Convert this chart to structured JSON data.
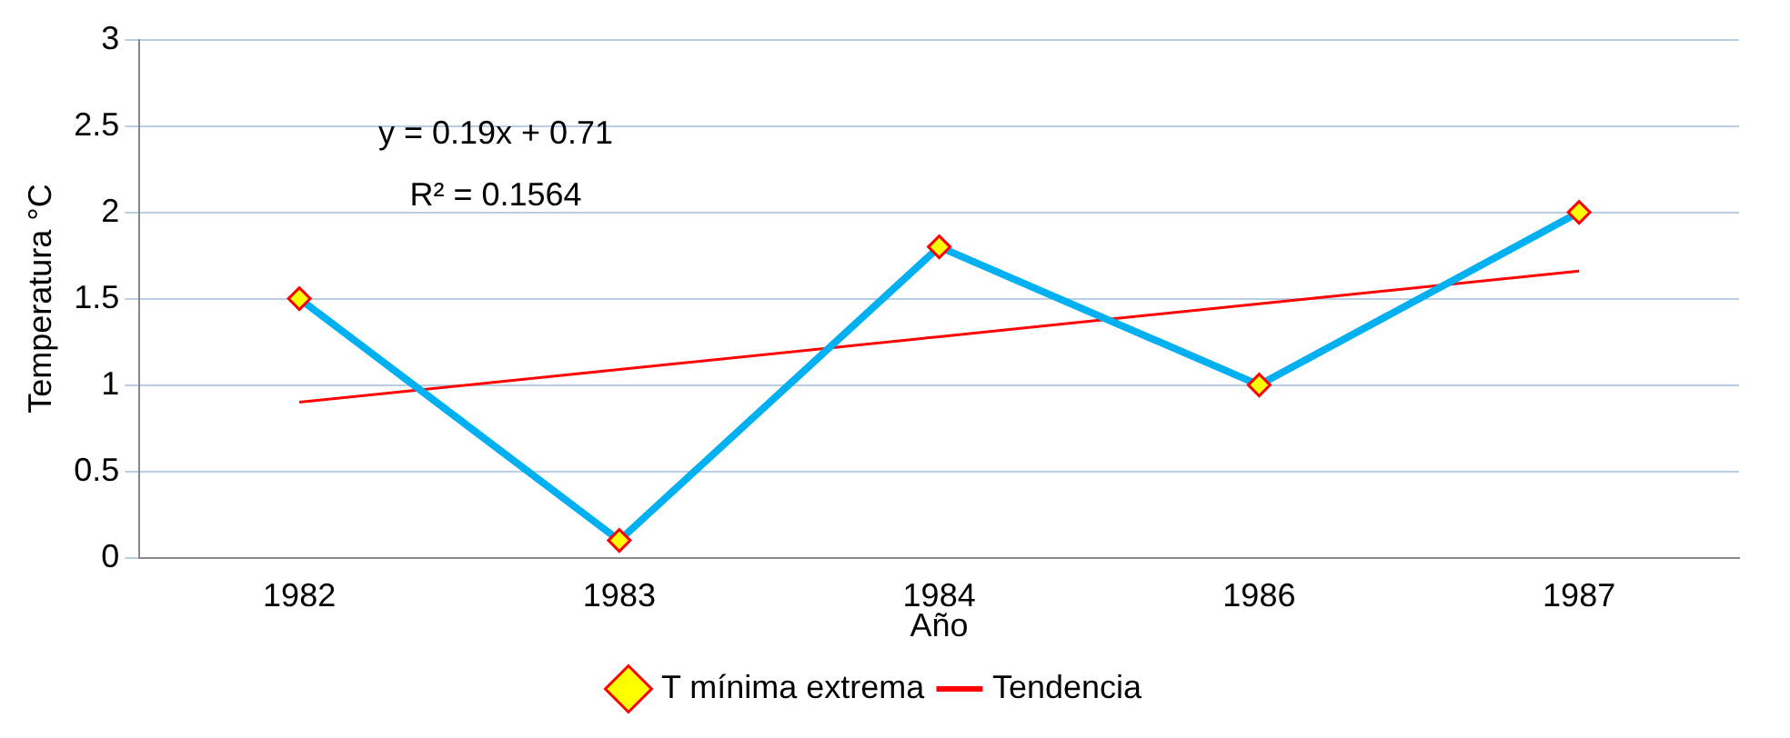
{
  "chart_data": {
    "type": "line",
    "xlabel": "Año",
    "ylabel": "Temperatura °C",
    "categories": [
      "1982",
      "1983",
      "1984",
      "1986",
      "1987"
    ],
    "series": [
      {
        "name": "T mínima extrema",
        "color": "#00b0f0",
        "values": [
          1.5,
          0.1,
          1.8,
          1.0,
          2.0
        ],
        "marker": "diamond"
      },
      {
        "name": "Tendencia",
        "color": "#ff0000",
        "values": [
          0.9,
          1.09,
          1.28,
          1.47,
          1.66
        ],
        "marker": "none"
      }
    ],
    "annotations": [
      "y = 0.19x + 0.71",
      "R² = 0.1564"
    ],
    "ylim": [
      0,
      3
    ],
    "yticks": [
      0,
      0.5,
      1,
      1.5,
      2,
      2.5,
      3
    ],
    "grid": "y",
    "legend": "bottom"
  }
}
